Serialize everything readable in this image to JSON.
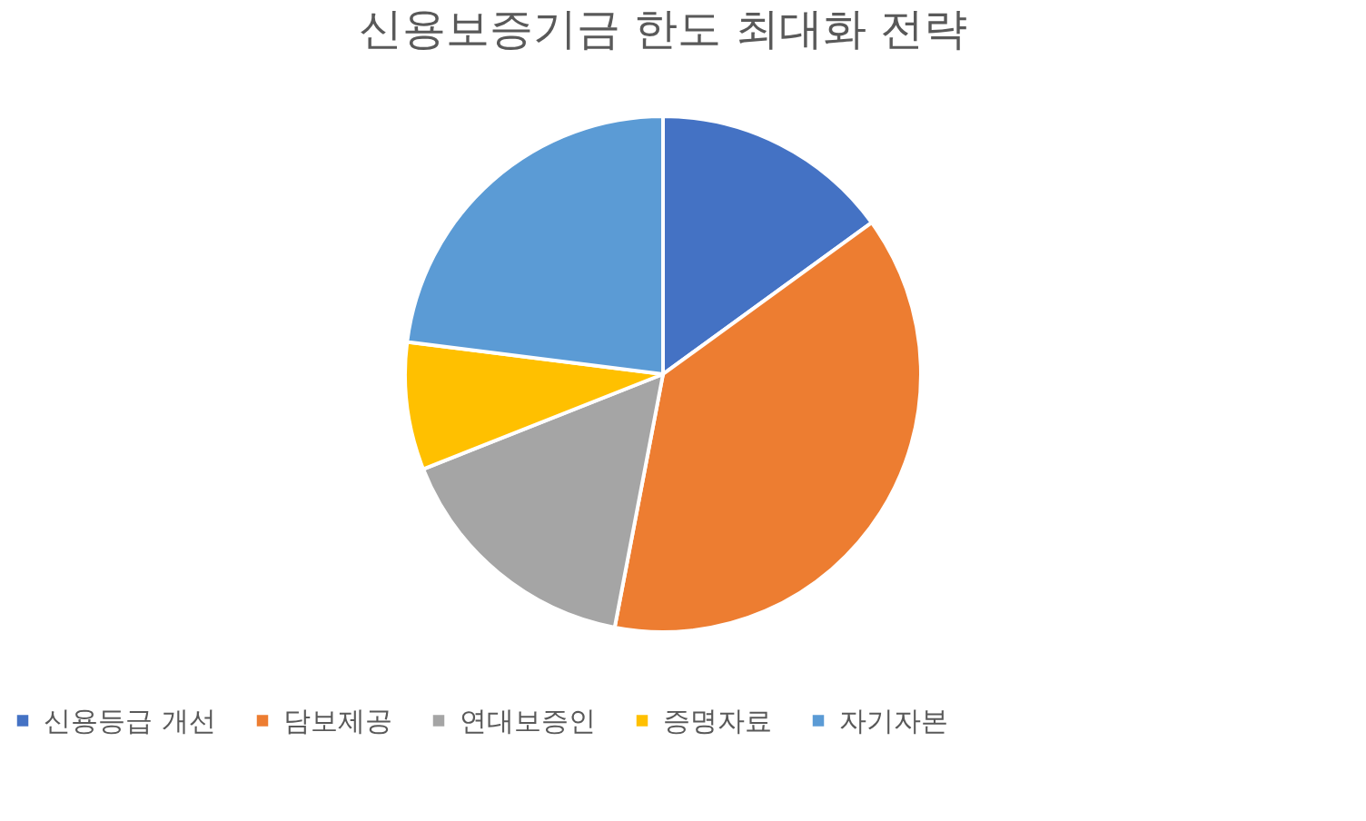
{
  "chart_data": {
    "type": "pie",
    "title": "신용보증기금 한도 최대화 전략",
    "categories": [
      "신용등급 개선",
      "담보제공",
      "연대보증인",
      "증명자료",
      "자기자본"
    ],
    "values": [
      15,
      38,
      16,
      8,
      23
    ],
    "colors": [
      "#4472c4",
      "#ed7d31",
      "#a5a5a5",
      "#ffc000",
      "#5b9bd5"
    ],
    "legend": "bottom"
  }
}
